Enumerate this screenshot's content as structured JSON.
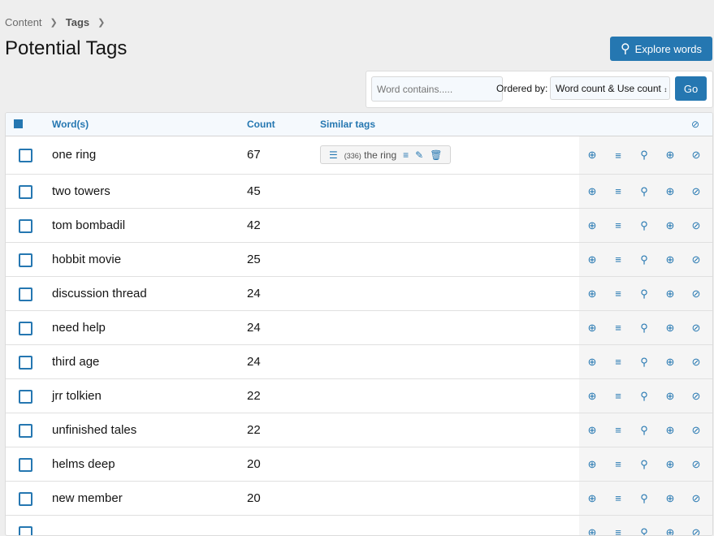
{
  "breadcrumb": [
    "Content",
    "Tags"
  ],
  "page_title": "Potential Tags",
  "explore_button": "Explore words",
  "filter": {
    "placeholder": "Word contains.....",
    "ordered_by_label": "Ordered by:",
    "order_value": "Word count & Use count",
    "go": "Go"
  },
  "columns": {
    "words": "Word(s)",
    "count": "Count",
    "similar": "Similar tags"
  },
  "similar_tag": {
    "count": "(336)",
    "name": "the ring"
  },
  "rows": [
    {
      "word": "one ring",
      "count": "67"
    },
    {
      "word": "two towers",
      "count": "45"
    },
    {
      "word": "tom bombadil",
      "count": "42"
    },
    {
      "word": "hobbit movie",
      "count": "25"
    },
    {
      "word": "discussion thread",
      "count": "24"
    },
    {
      "word": "need help",
      "count": "24"
    },
    {
      "word": "third age",
      "count": "24"
    },
    {
      "word": "jrr tolkien",
      "count": "22"
    },
    {
      "word": "unfinished tales",
      "count": "22"
    },
    {
      "word": "helms deep",
      "count": "20"
    },
    {
      "word": "new member",
      "count": "20"
    },
    {
      "word": "",
      "count": ""
    }
  ]
}
